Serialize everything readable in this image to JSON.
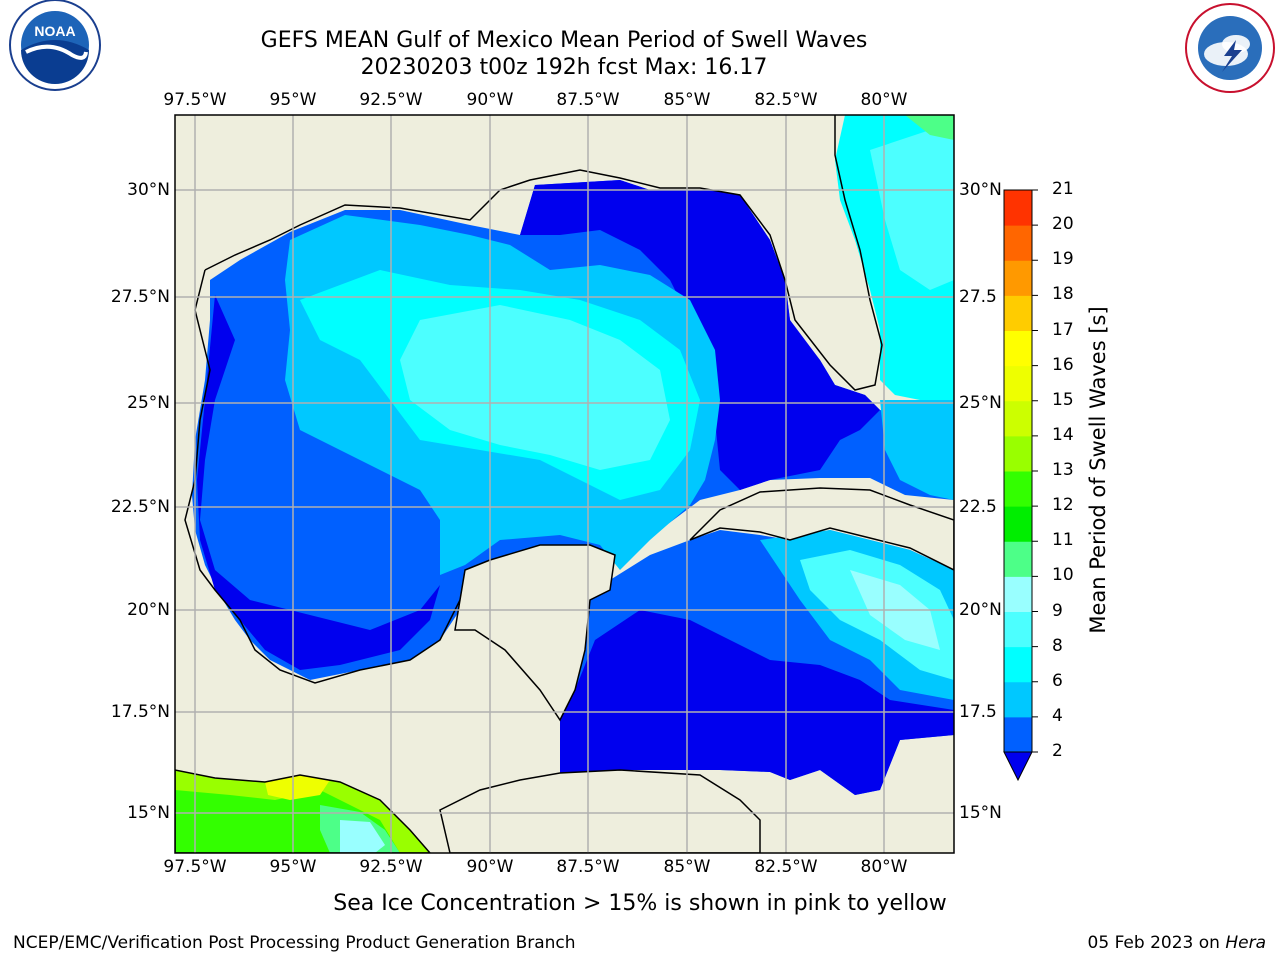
{
  "title": {
    "line1": "GEFS MEAN Gulf of Mexico Mean Period of Swell Waves",
    "line2": "20230203 t00z 192h fcst   Max: 16.17"
  },
  "logos": {
    "noaa_text": "NOAA",
    "noaa_ring": "NATIONAL OCEANIC AND ATMOSPHERIC ADMINISTRATION · U.S. DEPARTMENT OF COMMERCE",
    "nws_ring": "NATIONAL WEATHER SERVICE"
  },
  "map": {
    "lon_labels": [
      "97.5°W",
      "95°W",
      "92.5°W",
      "90°W",
      "87.5°W",
      "85°W",
      "82.5°W",
      "80°W"
    ],
    "lat_labels_left": [
      "30°N",
      "27.5°N",
      "25°N",
      "22.5°N",
      "20°N",
      "17.5°N",
      "15°N"
    ],
    "lat_labels_right": [
      "30°N",
      "27.5",
      "25°N",
      "22.5",
      "20°N",
      "17.5",
      "15°N"
    ],
    "colors": {
      "land": "#eeeedd",
      "ocean_none": "#ffffff",
      "grid": "#b0b0b0"
    }
  },
  "colorbar": {
    "label": "Mean Period of Swell Waves [s]",
    "ticks": [
      "2",
      "4",
      "6",
      "8",
      "9",
      "10",
      "11",
      "12",
      "13",
      "14",
      "15",
      "16",
      "17",
      "18",
      "19",
      "20",
      "21"
    ],
    "colors": [
      "#0000ee",
      "#0060ff",
      "#00c8ff",
      "#00ffff",
      "#4cffff",
      "#99ffff",
      "#4dff88",
      "#00ee00",
      "#33ff00",
      "#99ff00",
      "#ccff00",
      "#eeff00",
      "#ffff00",
      "#ffcc00",
      "#ff9900",
      "#ff6600",
      "#ff3300",
      "#ff0000"
    ]
  },
  "note": "Sea Ice Concentration > 15% is shown in pink to yellow",
  "footer": {
    "left": "NCEP/EMC/Verification Post Processing Product Generation Branch",
    "right_date": "05 Feb 2023 on",
    "right_host": "Hera"
  }
}
